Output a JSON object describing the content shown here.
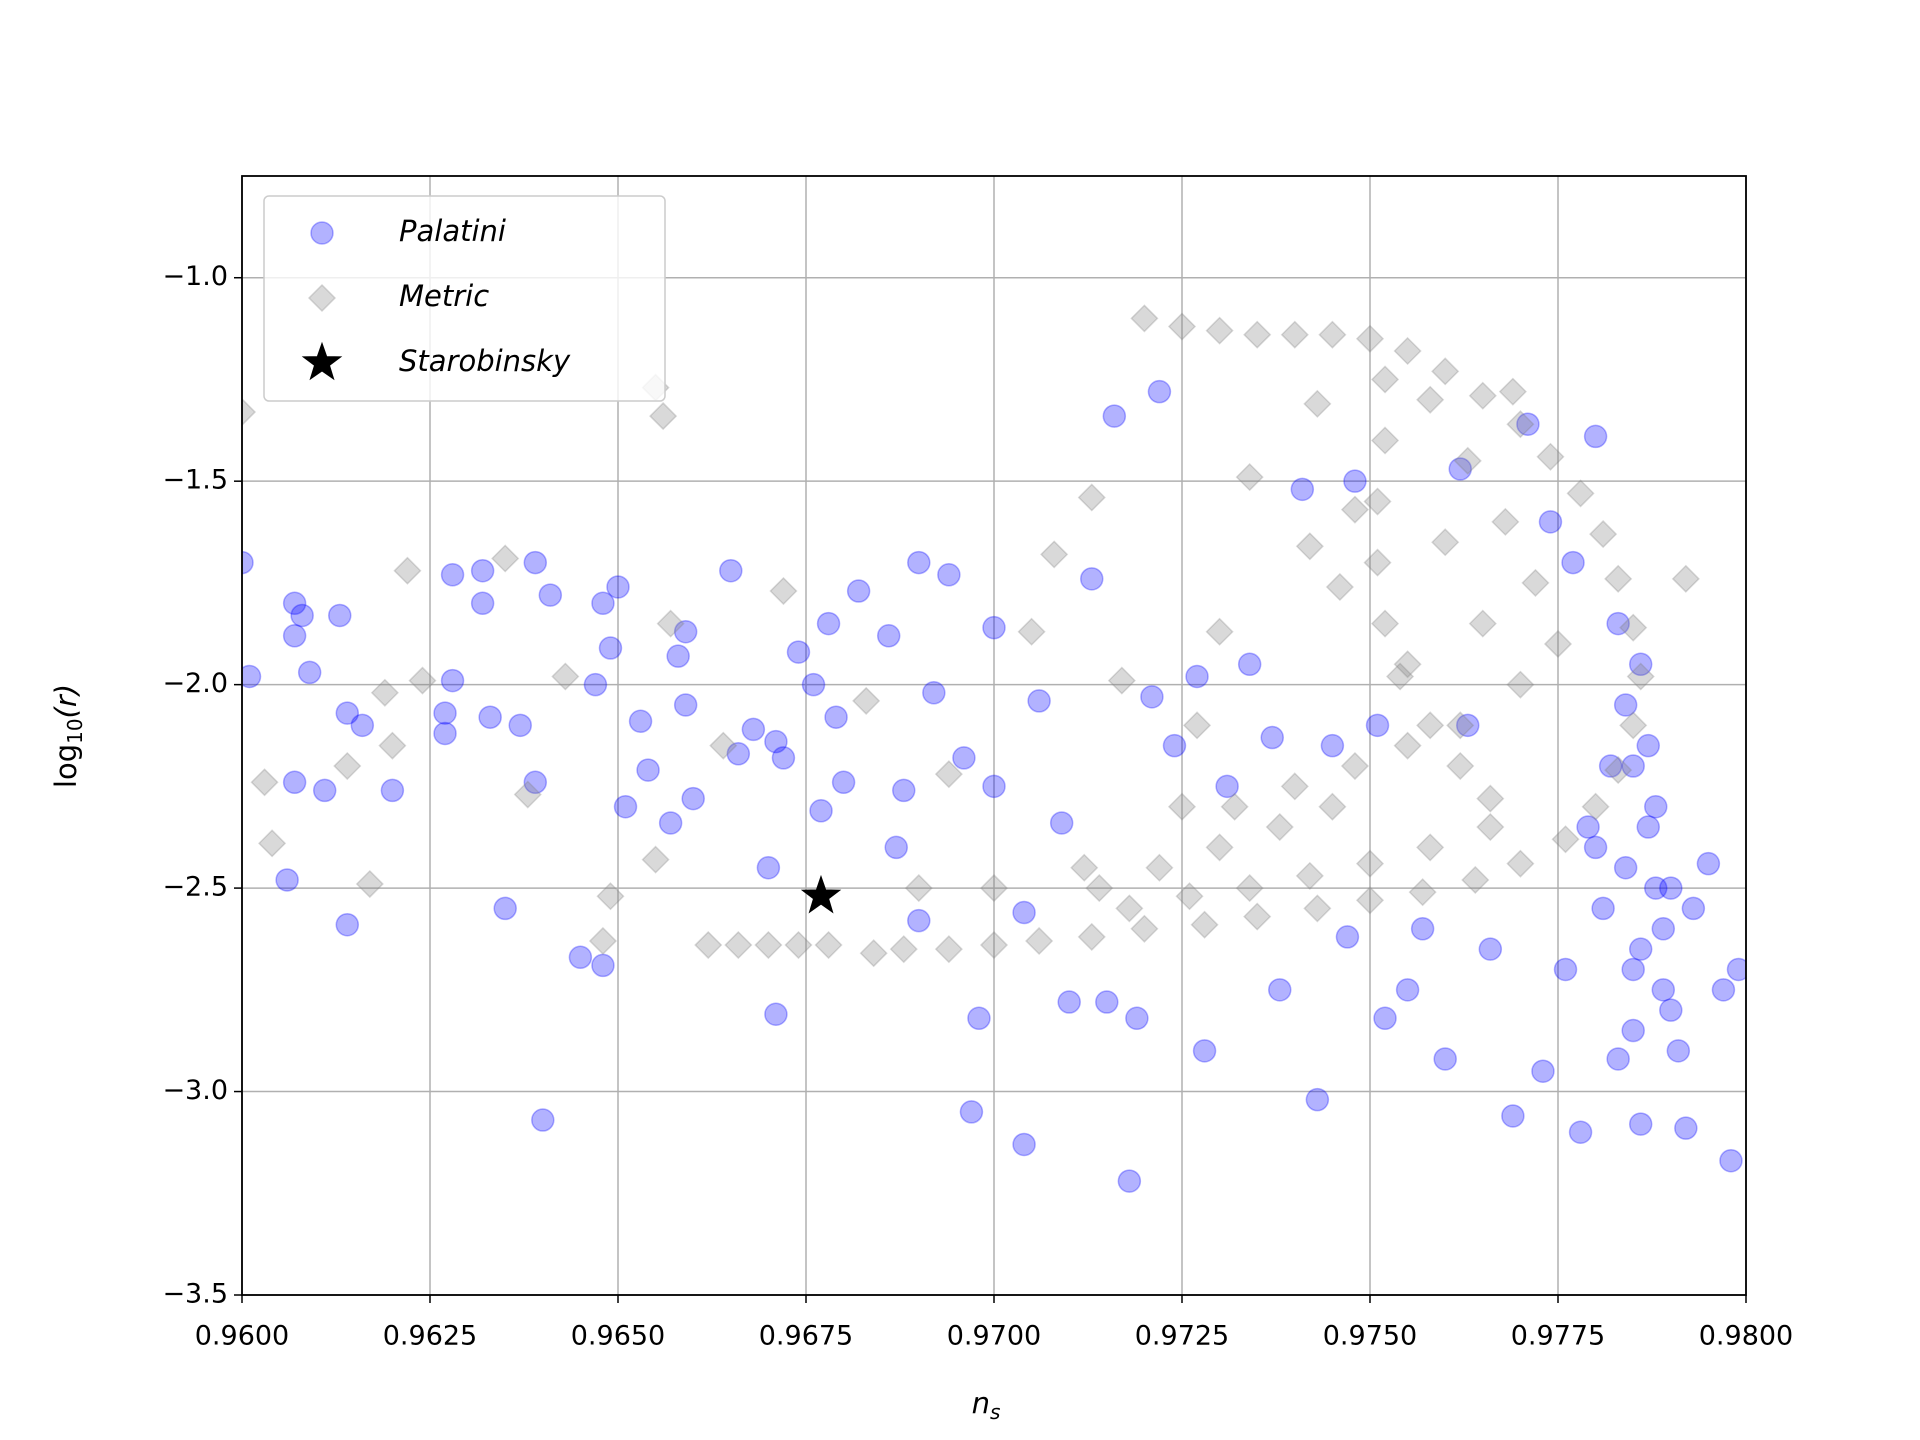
{
  "chart_data": {
    "type": "scatter",
    "x_label": "n",
    "x_label_sub": "s",
    "y_label": "log",
    "y_label_sub": "10",
    "y_label_rest": "(r)",
    "xlim": [
      0.96,
      0.98
    ],
    "xticks": [
      {
        "value": 0.96,
        "label": "0.9600"
      },
      {
        "value": 0.9625,
        "label": "0.9625"
      },
      {
        "value": 0.965,
        "label": "0.9650"
      },
      {
        "value": 0.9675,
        "label": "0.9675"
      },
      {
        "value": 0.97,
        "label": "0.9700"
      },
      {
        "value": 0.9725,
        "label": "0.9725"
      },
      {
        "value": 0.975,
        "label": "0.9750"
      },
      {
        "value": 0.9775,
        "label": "0.9775"
      },
      {
        "value": 0.98,
        "label": "0.9800"
      }
    ],
    "ylim": [
      -3.5,
      -0.75
    ],
    "yticks": [
      {
        "value": -3.5,
        "label": "−3.5"
      },
      {
        "value": -3,
        "label": "−3.0"
      },
      {
        "value": -2.5,
        "label": "−2.5"
      },
      {
        "value": -2,
        "label": "−2.0"
      },
      {
        "value": -1.5,
        "label": "−1.5"
      },
      {
        "value": -1,
        "label": "−1.0"
      }
    ],
    "grid": true,
    "legend": "upper left",
    "series": [
      {
        "name": "Palatini",
        "color": "#0000ff",
        "marker": "circle",
        "alpha": 0.3,
        "x": [
          0.96,
          0.9607,
          0.9607,
          0.9608,
          0.9609,
          0.9601,
          0.9613,
          0.9614,
          0.9607,
          0.9611,
          0.9606,
          0.9614,
          0.9616,
          0.962,
          0.9627,
          0.9627,
          0.9628,
          0.9628,
          0.9632,
          0.9632,
          0.9633,
          0.9635,
          0.9637,
          0.9639,
          0.9639,
          0.9641,
          0.964,
          0.9645,
          0.9647,
          0.9648,
          0.9648,
          0.9649,
          0.965,
          0.9651,
          0.9653,
          0.9654,
          0.9657,
          0.9658,
          0.9659,
          0.9659,
          0.966,
          0.9665,
          0.9666,
          0.9668,
          0.967,
          0.9671,
          0.9671,
          0.9672,
          0.9674,
          0.9676,
          0.9677,
          0.9678,
          0.9679,
          0.968,
          0.9682,
          0.9686,
          0.9687,
          0.9688,
          0.969,
          0.969,
          0.9692,
          0.9694,
          0.9696,
          0.9697,
          0.9698,
          0.97,
          0.97,
          0.9704,
          0.9704,
          0.9706,
          0.9709,
          0.971,
          0.9713,
          0.9715,
          0.9716,
          0.9718,
          0.9719,
          0.9721,
          0.9722,
          0.9724,
          0.9727,
          0.9728,
          0.9731,
          0.9734,
          0.9737,
          0.9738,
          0.9741,
          0.9743,
          0.9745,
          0.9747,
          0.9748,
          0.9751,
          0.9752,
          0.9755,
          0.9757,
          0.976,
          0.9762,
          0.9763,
          0.9766,
          0.9769,
          0.9771,
          0.9773,
          0.9776,
          0.9778,
          0.978,
          0.9783,
          0.9785,
          0.9786,
          0.9788,
          0.979,
          0.9792,
          0.9793,
          0.9795,
          0.9797,
          0.9798,
          0.9799,
          0.9782,
          0.9784,
          0.9786,
          0.9787,
          0.9789,
          0.978,
          0.9777,
          0.9774,
          0.9785,
          0.9787,
          0.9783,
          0.9788,
          0.979,
          0.9786,
          0.9784,
          0.9789,
          0.9781,
          0.9779,
          0.9791,
          0.9785
        ],
        "y": [
          -1.7,
          -1.88,
          -1.8,
          -1.83,
          -1.97,
          -1.98,
          -1.83,
          -2.07,
          -2.24,
          -2.26,
          -2.48,
          -2.59,
          -2.1,
          -2.26,
          -2.07,
          -2.12,
          -1.99,
          -1.73,
          -1.72,
          -1.8,
          -2.08,
          -2.55,
          -2.1,
          -1.7,
          -2.24,
          -1.78,
          -3.07,
          -2.67,
          -2,
          -1.8,
          -2.69,
          -1.91,
          -1.76,
          -2.3,
          -2.09,
          -2.21,
          -2.34,
          -1.93,
          -1.87,
          -2.05,
          -2.28,
          -1.72,
          -2.17,
          -2.11,
          -2.45,
          -2.14,
          -2.81,
          -2.18,
          -1.92,
          -2,
          -2.31,
          -1.85,
          -2.08,
          -2.24,
          -1.77,
          -1.88,
          -2.4,
          -2.26,
          -2.58,
          -1.7,
          -2.02,
          -1.73,
          -2.18,
          -3.05,
          -2.82,
          -1.86,
          -2.25,
          -3.13,
          -2.56,
          -2.04,
          -2.34,
          -2.78,
          -1.74,
          -2.78,
          -1.34,
          -3.22,
          -2.82,
          -2.03,
          -1.28,
          -2.15,
          -1.98,
          -2.9,
          -2.25,
          -1.95,
          -2.13,
          -2.75,
          -1.52,
          -3.02,
          -2.15,
          -2.62,
          -1.5,
          -2.1,
          -2.82,
          -2.75,
          -2.6,
          -2.92,
          -1.47,
          -2.1,
          -2.65,
          -3.06,
          -1.36,
          -2.95,
          -2.7,
          -3.1,
          -1.39,
          -2.92,
          -2.7,
          -3.08,
          -2.5,
          -2.8,
          -3.09,
          -2.55,
          -2.44,
          -2.75,
          -3.17,
          -2.7,
          -2.2,
          -2.05,
          -1.95,
          -2.35,
          -2.6,
          -2.4,
          -1.7,
          -1.6,
          -2.85,
          -2.15,
          -1.85,
          -2.3,
          -2.5,
          -2.65,
          -2.45,
          -2.75,
          -2.55,
          -2.35,
          -2.9,
          -2.2
        ]
      },
      {
        "name": "Metric",
        "color": "#808080",
        "marker": "diamond",
        "alpha": 0.3,
        "x": [
          0.972,
          0.9725,
          0.973,
          0.9735,
          0.974,
          0.9745,
          0.975,
          0.9755,
          0.976,
          0.9765,
          0.977,
          0.9774,
          0.9778,
          0.9781,
          0.9783,
          0.9785,
          0.9786,
          0.9785,
          0.9783,
          0.978,
          0.9776,
          0.977,
          0.9764,
          0.9757,
          0.975,
          0.9743,
          0.9735,
          0.9728,
          0.972,
          0.9713,
          0.9706,
          0.97,
          0.9694,
          0.9688,
          0.9684,
          0.9752,
          0.9752,
          0.9751,
          0.9751,
          0.9752,
          0.9754,
          0.9758,
          0.9762,
          0.9766,
          0.9758,
          0.9763,
          0.9768,
          0.9772,
          0.9775,
          0.9766,
          0.9758,
          0.975,
          0.9742,
          0.9734,
          0.9726,
          0.9718,
          0.9745,
          0.9738,
          0.973,
          0.9722,
          0.9714,
          0.9765,
          0.977,
          0.9762,
          0.9755,
          0.9748,
          0.974,
          0.9732,
          0.976,
          0.9755,
          0.96,
          0.9656,
          0.9655,
          0.9635,
          0.9622,
          0.9624,
          0.9619,
          0.9603,
          0.9604,
          0.9617,
          0.9614,
          0.962,
          0.9638,
          0.9643,
          0.9649,
          0.9648,
          0.9655,
          0.9662,
          0.9666,
          0.967,
          0.9674,
          0.9678,
          0.9657,
          0.9664,
          0.9672,
          0.9683,
          0.9694,
          0.9705,
          0.9708,
          0.9713,
          0.9717,
          0.9727,
          0.973,
          0.9742,
          0.9746,
          0.9748,
          0.9734,
          0.9743,
          0.9792,
          0.9769,
          0.97,
          0.969,
          0.9712,
          0.9725
        ],
        "y": [
          -1.1,
          -1.12,
          -1.13,
          -1.14,
          -1.14,
          -1.14,
          -1.15,
          -1.18,
          -1.23,
          -1.29,
          -1.36,
          -1.44,
          -1.53,
          -1.63,
          -1.74,
          -1.86,
          -1.98,
          -2.1,
          -2.21,
          -2.3,
          -2.38,
          -2.44,
          -2.48,
          -2.51,
          -2.53,
          -2.55,
          -2.57,
          -2.59,
          -2.6,
          -2.62,
          -2.63,
          -2.64,
          -2.65,
          -2.65,
          -2.66,
          -1.25,
          -1.4,
          -1.55,
          -1.7,
          -1.85,
          -1.98,
          -2.1,
          -2.2,
          -2.28,
          -1.3,
          -1.45,
          -1.6,
          -1.75,
          -1.9,
          -2.35,
          -2.4,
          -2.44,
          -2.47,
          -2.5,
          -2.52,
          -2.55,
          -2.3,
          -2.35,
          -2.4,
          -2.45,
          -2.5,
          -1.85,
          -2.0,
          -2.1,
          -2.15,
          -2.2,
          -2.25,
          -2.3,
          -1.65,
          -1.95,
          -1.33,
          -1.34,
          -1.27,
          -1.69,
          -1.72,
          -1.99,
          -2.02,
          -2.24,
          -2.39,
          -2.49,
          -2.2,
          -2.15,
          -2.27,
          -1.98,
          -2.52,
          -2.63,
          -2.43,
          -2.64,
          -2.64,
          -2.64,
          -2.64,
          -2.64,
          -1.85,
          -2.15,
          -1.77,
          -2.04,
          -2.22,
          -1.87,
          -1.68,
          -1.54,
          -1.99,
          -2.1,
          -1.87,
          -1.66,
          -1.76,
          -1.57,
          -1.49,
          -1.31,
          -1.74,
          -1.28,
          -2.5,
          -2.5,
          -2.45,
          -2.3
        ]
      },
      {
        "name": "Starobinsky",
        "color": "#000000",
        "marker": "star",
        "alpha": 1,
        "x": [
          0.9677
        ],
        "y": [
          -2.52
        ]
      }
    ]
  }
}
